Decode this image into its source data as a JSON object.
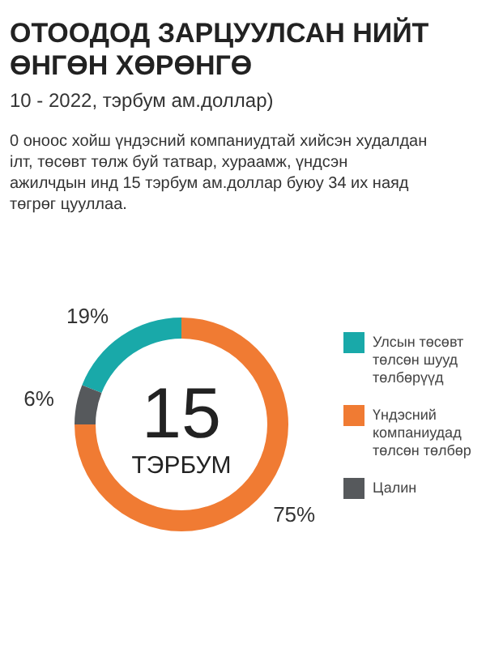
{
  "chart_data": {
    "type": "donut",
    "title": "ОТООДОД ЗАРЦУУЛСАН НИЙТ ӨНГӨН ХӨРӨНГӨ",
    "subtitle": "10 - 2022, тэрбум ам.доллар)",
    "annotations": [
      "0 оноос хойш үндэсний компаниудтай хийсэн худалдан ілт, төсөвт төлж буй татвар, хураамж, үндсэн ажилчдын инд 15 тэрбум ам.доллар буюу 34 их наяд төгрөг цууллаа.",
      "15",
      "ТЭРБУМ"
    ],
    "categories": [
      "Улсын төсөвт төлсөн шууд төлбөрүүд",
      "Үндэсний компаниудад төлсөн төлбөр",
      "Цалин"
    ],
    "values": [
      19,
      75,
      6
    ],
    "colors": [
      "#19a9a9",
      "#f07b33",
      "#56595c"
    ],
    "value_labels": [
      "19%",
      "75%",
      "6%"
    ],
    "legend": "right"
  }
}
